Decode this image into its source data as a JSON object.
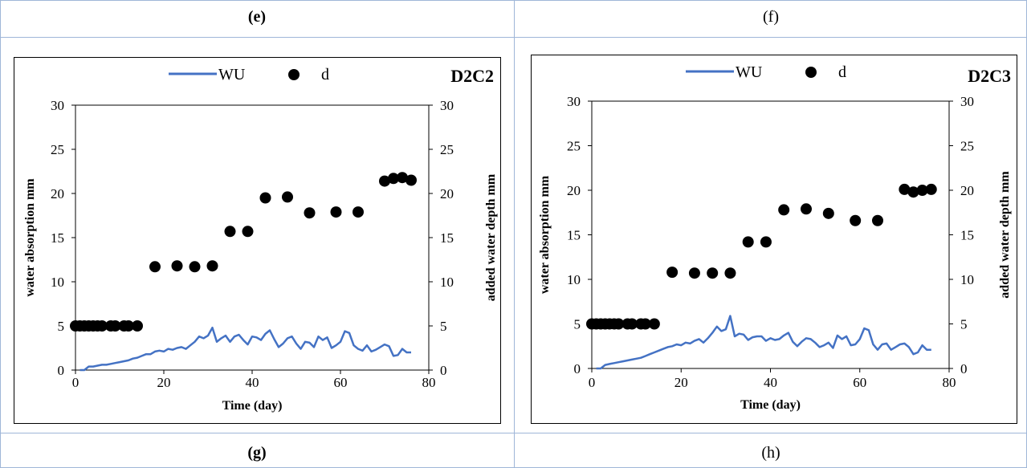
{
  "captions": {
    "top_left": "(e)",
    "top_right": "(f)",
    "bottom_left": "(g)",
    "bottom_right": "(h)"
  },
  "colors": {
    "wu_line": "#4472c4",
    "d_marker": "#000000",
    "table_border": "#9fb6d8"
  },
  "chart_data": [
    {
      "type": "line",
      "title": "D2C2",
      "legend": [
        "WU",
        "d"
      ],
      "legend_placement": "top-center",
      "xlabel": "Time (day)",
      "ylabel_left": "water absorption mm",
      "ylabel_right": "added water depth mm",
      "xlim": [
        0,
        80
      ],
      "ylim": [
        0,
        30
      ],
      "xticks": [
        "0",
        "20",
        "40",
        "60",
        "80"
      ],
      "yticks": [
        "0",
        "5",
        "10",
        "15",
        "20",
        "25",
        "30"
      ],
      "series": [
        {
          "name": "WU",
          "type": "line",
          "x": [
            1,
            2,
            3,
            4,
            5,
            6,
            7,
            8,
            9,
            10,
            11,
            12,
            13,
            14,
            15,
            16,
            17,
            18,
            19,
            20,
            21,
            22,
            23,
            24,
            25,
            26,
            27,
            28,
            29,
            30,
            31,
            32,
            33,
            34,
            35,
            36,
            37,
            38,
            39,
            40,
            41,
            42,
            43,
            44,
            45,
            46,
            47,
            48,
            49,
            50,
            51,
            52,
            53,
            54,
            55,
            56,
            57,
            58,
            59,
            60,
            61,
            62,
            63,
            64,
            65,
            66,
            67,
            68,
            69,
            70,
            71,
            72,
            73,
            74,
            75,
            76
          ],
          "y": [
            0,
            0,
            0.4,
            0.4,
            0.5,
            0.6,
            0.6,
            0.7,
            0.8,
            0.9,
            1,
            1.1,
            1.3,
            1.4,
            1.6,
            1.8,
            1.8,
            2.1,
            2.2,
            2.1,
            2.4,
            2.3,
            2.5,
            2.6,
            2.4,
            2.8,
            3.2,
            3.8,
            3.6,
            3.9,
            4.8,
            3.2,
            3.6,
            3.9,
            3.2,
            3.8,
            4,
            3.4,
            2.9,
            3.8,
            3.7,
            3.4,
            4.1,
            4.5,
            3.5,
            2.6,
            3,
            3.6,
            3.8,
            3,
            2.4,
            3.2,
            3.1,
            2.6,
            3.8,
            3.4,
            3.7,
            2.5,
            2.8,
            3.2,
            4.4,
            4.2,
            2.8,
            2.4,
            2.2,
            2.8,
            2.1,
            2.3,
            2.6,
            2.9,
            2.7,
            1.6,
            1.7,
            2.4,
            2,
            2
          ]
        },
        {
          "name": "d",
          "type": "scatter",
          "x": [
            0,
            1,
            2,
            3,
            4,
            5,
            6,
            8,
            9,
            11,
            12,
            14,
            18,
            23,
            27,
            31,
            35,
            39,
            43,
            48,
            53,
            59,
            64,
            70,
            72,
            74,
            76
          ],
          "y": [
            5,
            5,
            5,
            5,
            5,
            5,
            5,
            5,
            5,
            5,
            5,
            5,
            11.7,
            11.8,
            11.7,
            11.8,
            15.7,
            15.7,
            19.5,
            19.6,
            17.8,
            17.9,
            17.9,
            21.4,
            21.7,
            21.8,
            21.5
          ]
        }
      ]
    },
    {
      "type": "line",
      "title": "D2C3",
      "legend": [
        "WU",
        "d"
      ],
      "legend_placement": "top-center",
      "xlabel": "Time (day)",
      "ylabel_left": "water absorption mm",
      "ylabel_right": "added water depth mm",
      "xlim": [
        0,
        80
      ],
      "ylim": [
        0,
        30
      ],
      "xticks": [
        "0",
        "20",
        "40",
        "60",
        "80"
      ],
      "yticks": [
        "0",
        "5",
        "10",
        "15",
        "20",
        "25",
        "30"
      ],
      "series": [
        {
          "name": "WU",
          "type": "line",
          "x": [
            1,
            2,
            3,
            4,
            5,
            6,
            7,
            8,
            9,
            10,
            11,
            12,
            13,
            14,
            15,
            16,
            17,
            18,
            19,
            20,
            21,
            22,
            23,
            24,
            25,
            26,
            27,
            28,
            29,
            30,
            31,
            32,
            33,
            34,
            35,
            36,
            37,
            38,
            39,
            40,
            41,
            42,
            43,
            44,
            45,
            46,
            47,
            48,
            49,
            50,
            51,
            52,
            53,
            54,
            55,
            56,
            57,
            58,
            59,
            60,
            61,
            62,
            63,
            64,
            65,
            66,
            67,
            68,
            69,
            70,
            71,
            72,
            73,
            74,
            75,
            76
          ],
          "y": [
            0,
            0,
            0.4,
            0.5,
            0.6,
            0.7,
            0.8,
            0.9,
            1,
            1.1,
            1.2,
            1.4,
            1.6,
            1.8,
            2,
            2.2,
            2.4,
            2.5,
            2.7,
            2.6,
            2.9,
            2.8,
            3.1,
            3.3,
            2.9,
            3.4,
            4,
            4.7,
            4.2,
            4.4,
            5.9,
            3.6,
            3.9,
            3.8,
            3.2,
            3.5,
            3.6,
            3.6,
            3.1,
            3.4,
            3.2,
            3.3,
            3.7,
            4,
            3,
            2.5,
            3,
            3.4,
            3.3,
            2.9,
            2.4,
            2.6,
            2.9,
            2.3,
            3.7,
            3.3,
            3.6,
            2.6,
            2.7,
            3.3,
            4.5,
            4.3,
            2.7,
            2.1,
            2.7,
            2.8,
            2.1,
            2.4,
            2.7,
            2.8,
            2.4,
            1.6,
            1.8,
            2.6,
            2.1,
            2.1
          ]
        },
        {
          "name": "d",
          "type": "scatter",
          "x": [
            0,
            1,
            2,
            3,
            4,
            5,
            6,
            8,
            9,
            11,
            12,
            14,
            18,
            23,
            27,
            31,
            35,
            39,
            43,
            48,
            53,
            59,
            64,
            70,
            72,
            74,
            76
          ],
          "y": [
            5,
            5,
            5,
            5,
            5,
            5,
            5,
            5,
            5,
            5,
            5,
            5,
            10.8,
            10.7,
            10.7,
            10.7,
            14.2,
            14.2,
            17.8,
            17.9,
            17.4,
            16.6,
            16.6,
            20.1,
            19.8,
            20,
            20.1
          ]
        }
      ]
    }
  ]
}
